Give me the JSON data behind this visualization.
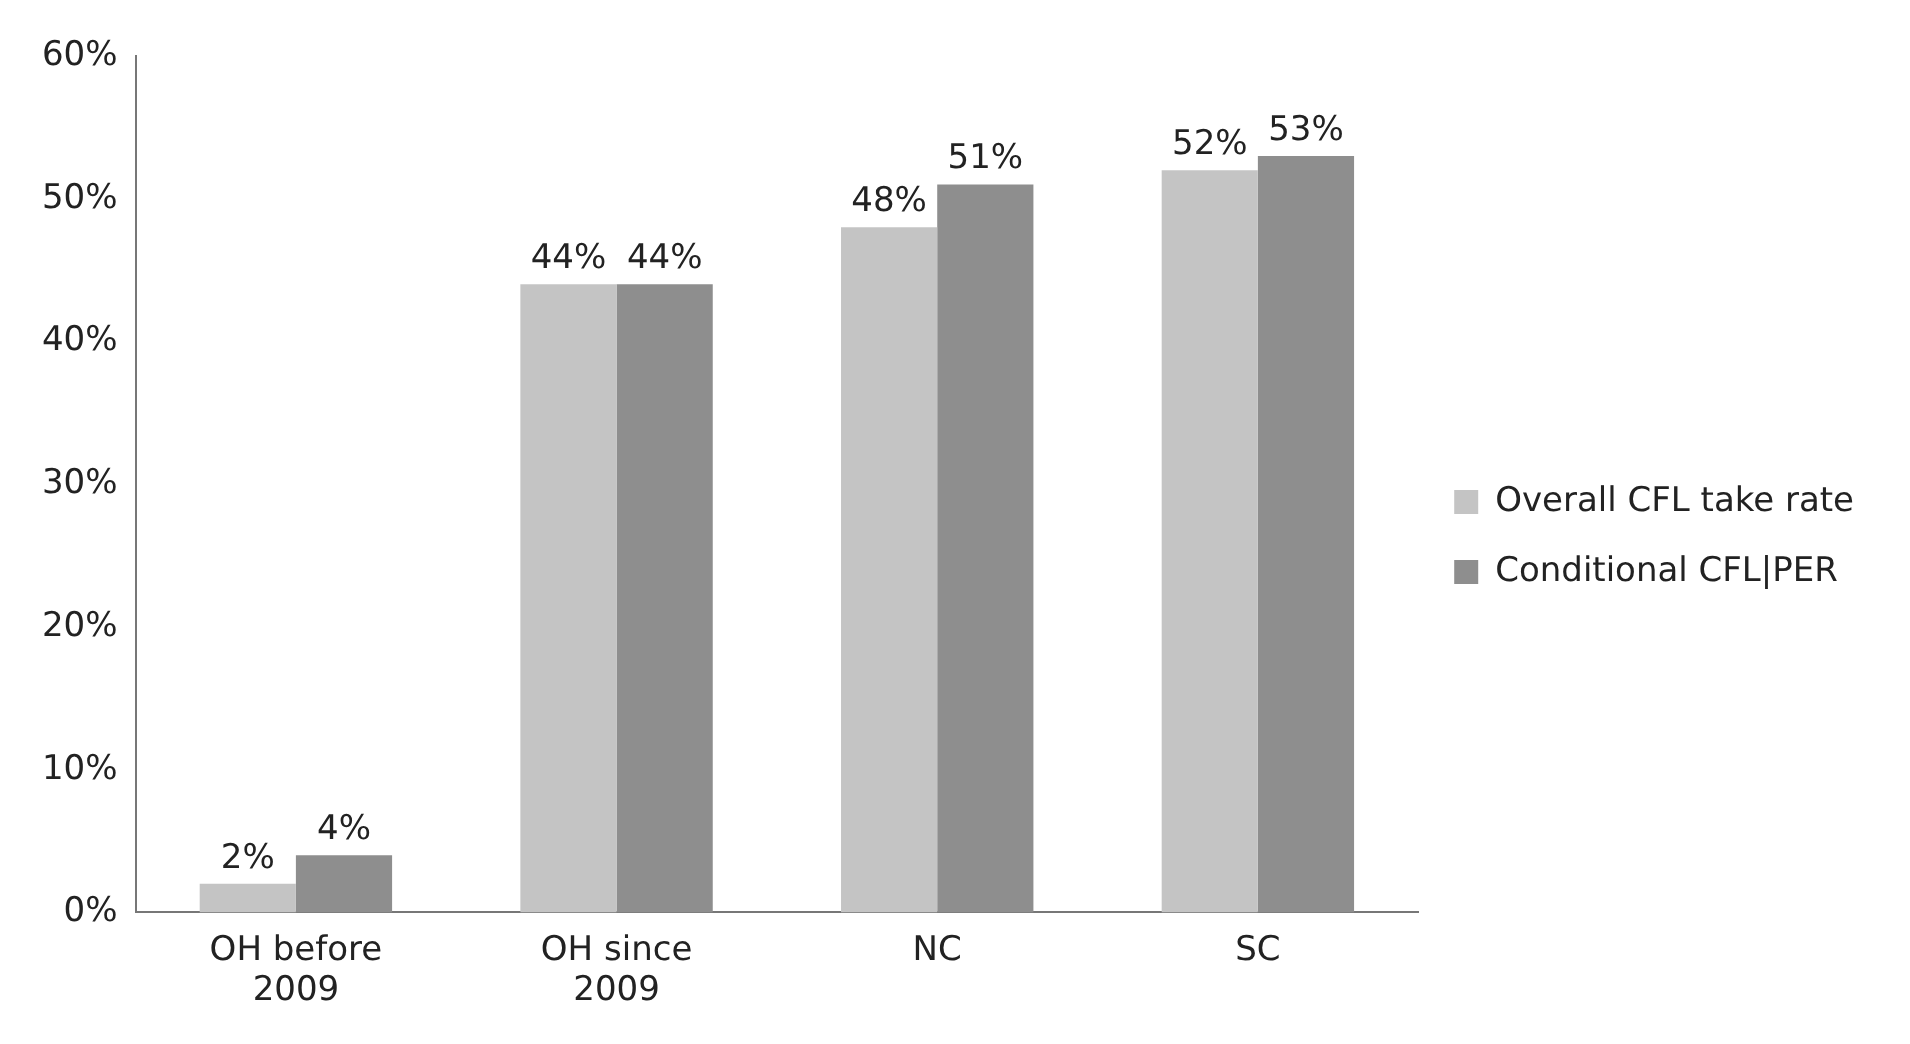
{
  "chart_data": {
    "type": "bar",
    "categories": [
      "OH before 2009",
      "OH since 2009",
      "NC",
      "SC"
    ],
    "series": [
      {
        "name": "Overall CFL take rate",
        "color": "#c4c4c4",
        "values": [
          2,
          44,
          48,
          52
        ],
        "value_labels": [
          "2%",
          "44%",
          "48%",
          "52%"
        ]
      },
      {
        "name": "Conditional CFL|PER",
        "color": "#8e8e8e",
        "values": [
          4,
          44,
          51,
          53
        ],
        "value_labels": [
          "4%",
          "44%",
          "51%",
          "53%"
        ]
      }
    ],
    "ylim": [
      0,
      60
    ],
    "yticks": [
      {
        "value": 0,
        "label": "0%"
      },
      {
        "value": 10,
        "label": "10%"
      },
      {
        "value": 20,
        "label": "20%"
      },
      {
        "value": 30,
        "label": "30%"
      },
      {
        "value": 40,
        "label": "40%"
      },
      {
        "value": 50,
        "label": "50%"
      },
      {
        "value": 60,
        "label": "60%"
      }
    ],
    "grid": false,
    "legend": "right"
  }
}
